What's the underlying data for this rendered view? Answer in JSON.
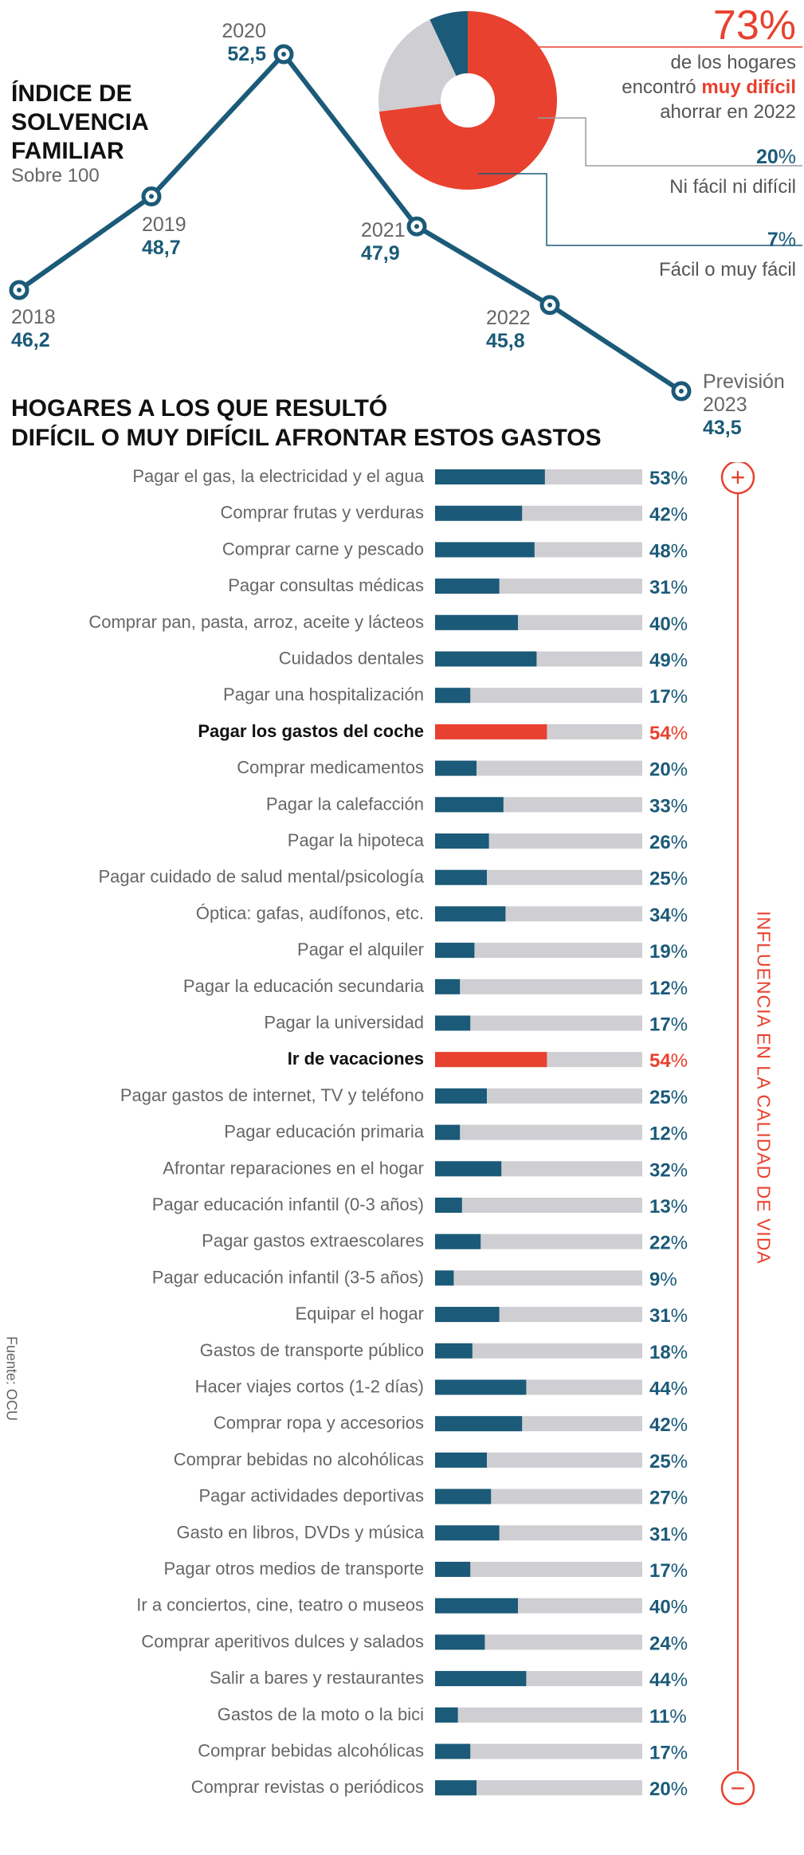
{
  "line_chart": {
    "title_lines": [
      "ÍNDICE DE",
      "SOLVENCIA",
      "FAMILIAR"
    ],
    "subtitle": "Sobre 100"
  },
  "pie": {
    "main_pct": "73%",
    "main_text_1": "de los hogares",
    "main_text_2a": "encontró ",
    "main_text_2b": "muy difícil",
    "main_text_3": "ahorrar en 2022",
    "neutral_num": "20",
    "neutral_label": "Ni fácil ni difícil",
    "easy_num": "7",
    "easy_label": "Fácil o muy fácil",
    "pct_sign": "%"
  },
  "bars_title_lines": [
    "HOGARES A LOS QUE RESULTÓ",
    "DIFÍCIL O MUY DIFÍCIL AFRONTAR ESTOS GASTOS"
  ],
  "side_label": "INFLUENCIA EN LA CALIDAD DE VIDA",
  "plus_sign": "+",
  "minus_sign": "−",
  "source": "Fuente: OCU",
  "colors": {
    "blue": "#1b5a78",
    "red": "#e8412f",
    "grey": "#cfcfd3",
    "dark_text": "#111111"
  },
  "chart_data": [
    {
      "type": "line",
      "title": "ÍNDICE DE SOLVENCIA FAMILIAR",
      "subtitle": "Sobre 100",
      "points": [
        {
          "year": "2018",
          "value": 46.2,
          "value_label": "46,2"
        },
        {
          "year": "2019",
          "value": 48.7,
          "value_label": "48,7"
        },
        {
          "year": "2020",
          "value": 52.5,
          "value_label": "52,5"
        },
        {
          "year": "2021",
          "value": 47.9,
          "value_label": "47,9"
        },
        {
          "year": "2022",
          "value": 45.8,
          "value_label": "45,8"
        },
        {
          "year": "Previsión 2023",
          "year_lines": [
            "Previsión",
            "2023"
          ],
          "value": 43.5,
          "value_label": "43,5"
        }
      ]
    },
    {
      "type": "pie",
      "slices": [
        {
          "label": "Muy difícil / difícil",
          "value": 73,
          "color": "#e8412f"
        },
        {
          "label": "Ni fácil ni difícil",
          "value": 20,
          "color": "#cfcfd3"
        },
        {
          "label": "Fácil o muy fácil",
          "value": 7,
          "color": "#1b5a78"
        }
      ]
    },
    {
      "type": "bar",
      "title": "HOGARES A LOS QUE RESULTÓ DIFÍCIL O MUY DIFÍCIL AFRONTAR ESTOS GASTOS",
      "xlim": [
        0,
        100
      ],
      "value_suffix": "%",
      "items": [
        {
          "label": "Pagar el gas, la electricidad y el agua",
          "value": 53,
          "highlight": false
        },
        {
          "label": "Comprar frutas y verduras",
          "value": 42,
          "highlight": false
        },
        {
          "label": "Comprar carne y pescado",
          "value": 48,
          "highlight": false
        },
        {
          "label": "Pagar consultas médicas",
          "value": 31,
          "highlight": false
        },
        {
          "label": "Comprar pan, pasta, arroz, aceite y lácteos",
          "value": 40,
          "highlight": false
        },
        {
          "label": "Cuidados dentales",
          "value": 49,
          "highlight": false
        },
        {
          "label": "Pagar una hospitalización",
          "value": 17,
          "highlight": false
        },
        {
          "label": "Pagar los gastos del coche",
          "value": 54,
          "highlight": true
        },
        {
          "label": "Comprar medicamentos",
          "value": 20,
          "highlight": false
        },
        {
          "label": "Pagar la calefacción",
          "value": 33,
          "highlight": false
        },
        {
          "label": "Pagar la hipoteca",
          "value": 26,
          "highlight": false
        },
        {
          "label": "Pagar cuidado de salud mental/psicología",
          "value": 25,
          "highlight": false
        },
        {
          "label": "Óptica: gafas, audífonos, etc.",
          "value": 34,
          "highlight": false
        },
        {
          "label": "Pagar el alquiler",
          "value": 19,
          "highlight": false
        },
        {
          "label": "Pagar la educación secundaria",
          "value": 12,
          "highlight": false
        },
        {
          "label": "Pagar la universidad",
          "value": 17,
          "highlight": false
        },
        {
          "label": "Ir de vacaciones",
          "value": 54,
          "highlight": true
        },
        {
          "label": "Pagar gastos de internet, TV y teléfono",
          "value": 25,
          "highlight": false
        },
        {
          "label": "Pagar educación primaria",
          "value": 12,
          "highlight": false
        },
        {
          "label": "Afrontar reparaciones en el hogar",
          "value": 32,
          "highlight": false
        },
        {
          "label": "Pagar educación infantil (0-3 años)",
          "value": 13,
          "highlight": false
        },
        {
          "label": "Pagar gastos extraescolares",
          "value": 22,
          "highlight": false
        },
        {
          "label": "Pagar educación infantil (3-5 años)",
          "value": 9,
          "highlight": false
        },
        {
          "label": "Equipar el hogar",
          "value": 31,
          "highlight": false
        },
        {
          "label": "Gastos de transporte público",
          "value": 18,
          "highlight": false
        },
        {
          "label": "Hacer viajes cortos (1-2 días)",
          "value": 44,
          "highlight": false
        },
        {
          "label": "Comprar ropa y accesorios",
          "value": 42,
          "highlight": false
        },
        {
          "label": "Comprar bebidas no alcohólicas",
          "value": 25,
          "highlight": false
        },
        {
          "label": "Pagar actividades deportivas",
          "value": 27,
          "highlight": false
        },
        {
          "label": "Gasto en libros, DVDs y música",
          "value": 31,
          "highlight": false
        },
        {
          "label": "Pagar otros medios de transporte",
          "value": 17,
          "highlight": false
        },
        {
          "label": "Ir a conciertos, cine, teatro o museos",
          "value": 40,
          "highlight": false
        },
        {
          "label": "Comprar aperitivos dulces y salados",
          "value": 24,
          "highlight": false
        },
        {
          "label": "Salir a bares y restaurantes",
          "value": 44,
          "highlight": false
        },
        {
          "label": "Gastos de la moto o la bici",
          "value": 11,
          "highlight": false
        },
        {
          "label": "Comprar bebidas alcohólicas",
          "value": 17,
          "highlight": false
        },
        {
          "label": "Comprar revistas o periódicos",
          "value": 20,
          "highlight": false
        }
      ]
    }
  ]
}
